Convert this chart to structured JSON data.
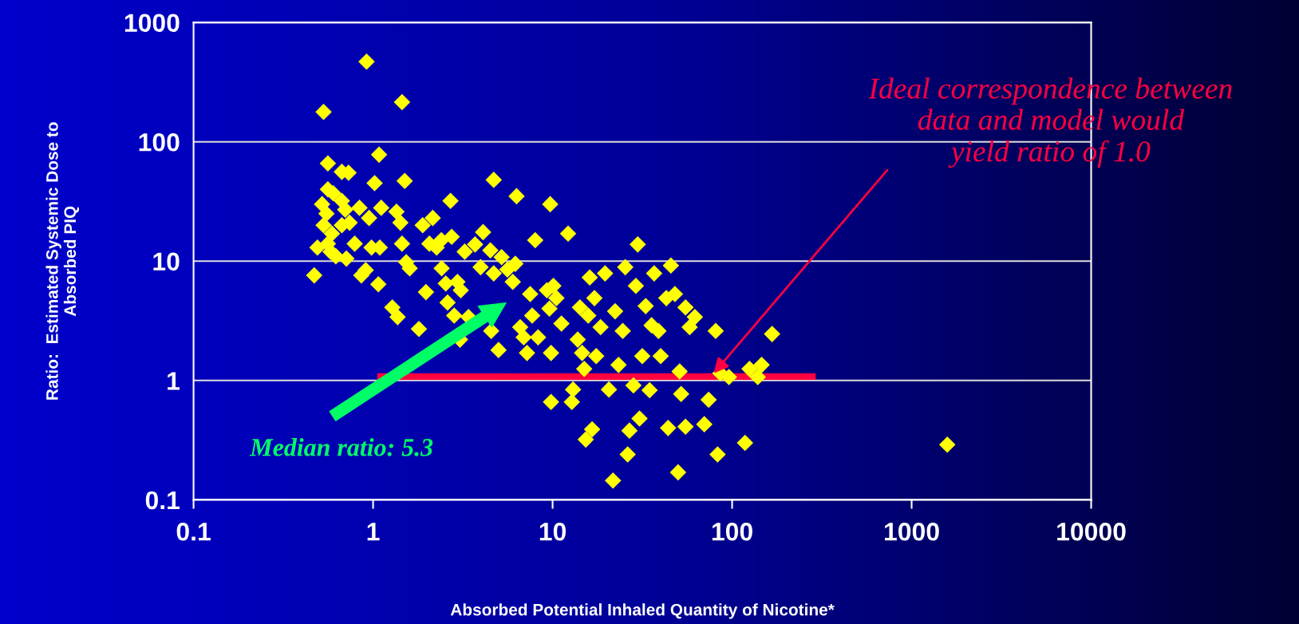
{
  "chart_data": {
    "type": "scatter",
    "xlabel": "Absorbed Potential Inhaled Quantity of Nicotine*",
    "ylabel": "Ratio:  Estimated Systemic Dose to\nAbsorbed PIQ",
    "log": "xy",
    "grid": "y",
    "marker": "diamond",
    "xlim": [
      0.1,
      10000
    ],
    "xticks": [
      0.1,
      1,
      10,
      100,
      1000,
      10000
    ],
    "ylim": [
      0.1,
      1000
    ],
    "yticks": [
      0.1,
      1,
      10,
      100,
      1000
    ],
    "series": [
      {
        "color": "#ffff00",
        "x": [
          0.92,
          0.53,
          1.45,
          1.08,
          0.56,
          0.67,
          0.73,
          1.02,
          1.5,
          4.7,
          6.3,
          9.7,
          2.7,
          0.56,
          0.67,
          0.47,
          0.49,
          0.53,
          0.52,
          0.55,
          0.59,
          0.58,
          0.62,
          0.67,
          0.7,
          0.74,
          0.79,
          0.86,
          0.91,
          0.84,
          0.95,
          0.98,
          1.09,
          1.07,
          1.11,
          0.6,
          0.71,
          0.56,
          1.28,
          1.37,
          1.53,
          1.45,
          1.42,
          1.35,
          1.6,
          1.8,
          1.89,
          1.97,
          2.15,
          2.06,
          2.26,
          2.41,
          2.54,
          2.6,
          2.83,
          3.05,
          3.08,
          2.95,
          2.74,
          2.4,
          3.24,
          3.4,
          3.7,
          3.97,
          4.1,
          4.5,
          4.7,
          4.55,
          5.0,
          5.2,
          5.6,
          6.0,
          6.2,
          6.6,
          6.9,
          7.2,
          7.5,
          7.7,
          8.0,
          8.3,
          9.3,
          9.6,
          9.8,
          10.1,
          10.5,
          9.8,
          11.2,
          12.2,
          12.8,
          13.0,
          13.8,
          14.2,
          14.6,
          15.0,
          15.3,
          15.8,
          16.1,
          16.6,
          17.1,
          17.5,
          18.5,
          19.6,
          20.6,
          21.7,
          22.3,
          23.3,
          24.6,
          25.4,
          26.2,
          26.8,
          28.2,
          29.1,
          29.8,
          30.5,
          31.6,
          33.0,
          34.7,
          35.6,
          36.8,
          38.9,
          40,
          43,
          44,
          45.6,
          48,
          50,
          51,
          52,
          55,
          55,
          58,
          62,
          70,
          74,
          81,
          83,
          86,
          96,
          118,
          125,
          139,
          146,
          167,
          1580
        ],
        "values": [
          470,
          178,
          215,
          78,
          66,
          56,
          55,
          45,
          47,
          48,
          35,
          30,
          32,
          40,
          32,
          7.6,
          13,
          20,
          30,
          25,
          17,
          12,
          11,
          20,
          27,
          21,
          14,
          7.6,
          8.4,
          28,
          23,
          13,
          13,
          6.4,
          28,
          37,
          10.5,
          14,
          4.1,
          3.4,
          9.8,
          14,
          21,
          26,
          8.7,
          2.7,
          20,
          5.5,
          23,
          14,
          13,
          8.7,
          6.5,
          4.5,
          3.5,
          2.2,
          5.7,
          6.7,
          16,
          15,
          12,
          3.4,
          13.8,
          8.9,
          17.5,
          12.3,
          7.9,
          2.6,
          1.8,
          10.8,
          8.5,
          6.7,
          9.5,
          2.8,
          2.3,
          1.7,
          5.3,
          3.5,
          15,
          2.3,
          5.7,
          4.0,
          1.7,
          6.2,
          4.9,
          0.66,
          3.0,
          17,
          0.66,
          0.84,
          2.2,
          4.1,
          1.7,
          1.25,
          0.32,
          3.5,
          7.3,
          0.39,
          4.9,
          1.6,
          2.8,
          7.9,
          0.84,
          0.145,
          3.8,
          1.35,
          2.6,
          8.9,
          0.24,
          0.38,
          0.91,
          6.2,
          13.8,
          0.48,
          1.6,
          4.2,
          0.83,
          2.9,
          7.9,
          2.6,
          1.6,
          4.9,
          0.4,
          9.2,
          5.3,
          0.17,
          1.19,
          0.77,
          4.1,
          0.41,
          2.8,
          3.4,
          0.43,
          0.69,
          2.6,
          0.24,
          1.15,
          1.07,
          0.3,
          1.25,
          1.07,
          1.35,
          2.45,
          0.29
        ]
      },
      {
        "type": "line",
        "marker": "none",
        "color": "#ff0040",
        "x": [
          1.1,
          280
        ],
        "values": [
          1.08,
          1.08
        ]
      }
    ],
    "annotations": [
      "Median ratio: 5.3",
      {
        "text": "Ideal correspondence between\ndata and model would\nyield ratio of 1.0",
        "x": 79,
        "y": 1.15
      }
    ]
  }
}
